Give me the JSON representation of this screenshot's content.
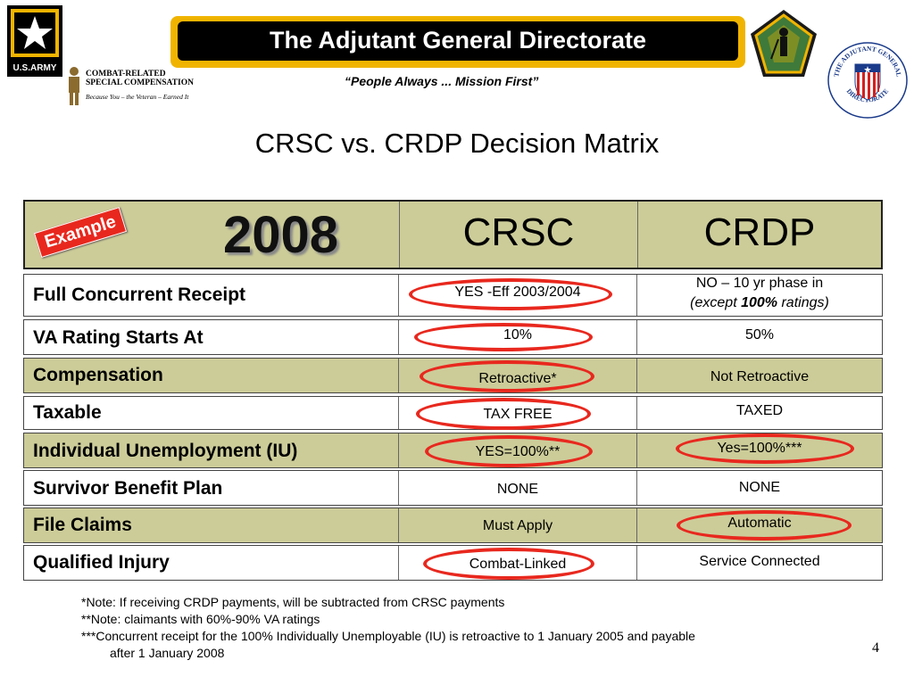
{
  "header": {
    "army_logo_text": "U.S.ARMY",
    "crsc_logo_line1": "COMBAT-RELATED",
    "crsc_logo_line2": "SPECIAL COMPENSATION",
    "crsc_logo_tagline": "Because You – the Veteran – Earned It",
    "title": "The Adjutant General Directorate",
    "motto": "“People Always ... Mission First”",
    "seal_text_top": "THE ADJUTANT GENERAL",
    "seal_text_bottom": "DIRECTORATE"
  },
  "main_title": "CRSC vs. CRDP Decision Matrix",
  "table": {
    "badge": "Example",
    "year": "2008",
    "col_crsc": "CRSC",
    "col_crdp": "CRDP",
    "rows": [
      {
        "label": "Full Concurrent Receipt",
        "crsc": "YES -Eff 2003/2004",
        "crdp_line1": "NO – 10 yr phase in",
        "crdp_line2_pre": "(except ",
        "crdp_line2_bold": "100%",
        "crdp_line2_post": " ratings)"
      },
      {
        "label": "VA Rating Starts At",
        "crsc": "10%",
        "crdp": "50%"
      },
      {
        "label": "Compensation",
        "crsc": "Retroactive*",
        "crdp": "Not Retroactive"
      },
      {
        "label": "Taxable",
        "crsc": "TAX FREE",
        "crdp": "TAXED"
      },
      {
        "label": "Individual Unemployment (IU)",
        "crsc": "YES=100%**",
        "crdp": "Yes=100%***"
      },
      {
        "label": "Survivor Benefit Plan",
        "crsc": "NONE",
        "crdp": "NONE"
      },
      {
        "label": "File Claims",
        "crsc": "Must Apply",
        "crdp": "Automatic"
      },
      {
        "label": "Qualified Injury",
        "crsc": "Combat-Linked",
        "crdp": "Service Connected"
      }
    ]
  },
  "notes": {
    "n1": "*Note: If receiving CRDP payments, will be subtracted from CRSC payments",
    "n2": "**Note: claimants with 60%-90% VA ratings",
    "n3a": "***Concurrent receipt for the 100% Individually Unemployable (IU) is retroactive to 1 January 2005 and payable",
    "n3b": "after 1 January 2008"
  },
  "page_number": "4",
  "colors": {
    "olive": "#cccc99",
    "accent_red": "#e8281e",
    "gold": "#f0b400"
  }
}
